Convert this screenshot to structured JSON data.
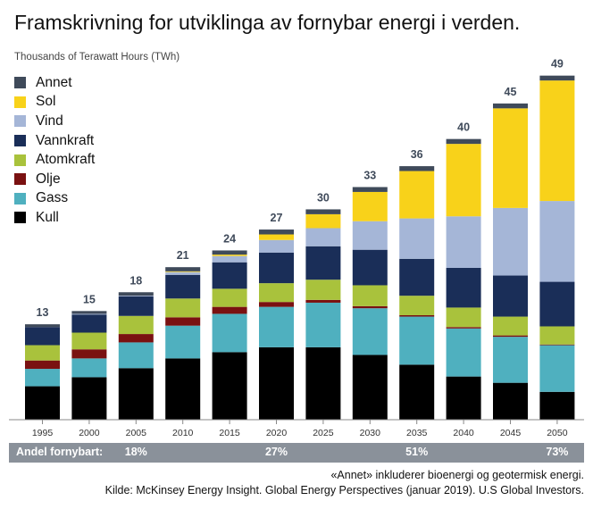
{
  "title": "Framskrivning for utviklinga av fornybar energi i verden.",
  "subtitle": "Thousands of Terawatt Hours (TWh)",
  "colors": {
    "Annet": "#3f4a5a",
    "Sol": "#f8d21a",
    "Vind": "#a5b6d7",
    "Vannkraft": "#1a2e58",
    "Atomkraft": "#a9c23c",
    "Olje": "#7a1111",
    "Gass": "#4fb0bf",
    "Kull": "#000000"
  },
  "legend": [
    "Annet",
    "Sol",
    "Vind",
    "Vannkraft",
    "Atomkraft",
    "Olje",
    "Gass",
    "Kull"
  ],
  "chart_data": {
    "type": "bar",
    "stacked": true,
    "categories": [
      "1995",
      "2000",
      "2005",
      "2010",
      "2015",
      "2020",
      "2025",
      "2030",
      "2035",
      "2040",
      "2045",
      "2050"
    ],
    "totals": [
      "13",
      "15",
      "18",
      "21",
      "24",
      "27",
      "30",
      "33",
      "36",
      "40",
      "45",
      "49"
    ],
    "series": [
      {
        "name": "Kull",
        "values": [
          4.8,
          6.1,
          7.4,
          8.8,
          9.7,
          10.4,
          10.4,
          9.3,
          7.9,
          6.2,
          5.3,
          4.0
        ]
      },
      {
        "name": "Gass",
        "values": [
          2.5,
          2.7,
          3.7,
          4.7,
          5.5,
          5.8,
          6.4,
          6.7,
          6.9,
          6.9,
          6.6,
          6.7
        ]
      },
      {
        "name": "Olje",
        "values": [
          1.2,
          1.3,
          1.2,
          1.2,
          1.0,
          0.7,
          0.4,
          0.3,
          0.2,
          0.2,
          0.2,
          0.1
        ]
      },
      {
        "name": "Atomkraft",
        "values": [
          2.2,
          2.4,
          2.6,
          2.7,
          2.6,
          2.7,
          2.9,
          3.0,
          2.8,
          2.8,
          2.7,
          2.6
        ]
      },
      {
        "name": "Vannkraft",
        "values": [
          2.6,
          2.6,
          2.8,
          3.4,
          3.8,
          4.4,
          4.8,
          5.1,
          5.3,
          5.7,
          5.9,
          6.4
        ]
      },
      {
        "name": "Vind",
        "values": [
          0.0,
          0.1,
          0.1,
          0.4,
          0.9,
          1.8,
          2.6,
          4.1,
          5.8,
          7.4,
          9.7,
          11.6
        ]
      },
      {
        "name": "Sol",
        "values": [
          0.0,
          0.0,
          0.0,
          0.1,
          0.2,
          0.8,
          2.0,
          4.2,
          6.8,
          10.4,
          14.3,
          17.3
        ]
      },
      {
        "name": "Annet",
        "values": [
          0.4,
          0.4,
          0.5,
          0.6,
          0.6,
          0.7,
          0.7,
          0.7,
          0.7,
          0.7,
          0.7,
          0.7
        ]
      }
    ],
    "ylim": [
      0,
      50
    ],
    "grid": false,
    "legend_position": "top-left"
  },
  "share": {
    "label": "Andel fornybart:",
    "values": [
      {
        "year": "2005",
        "value": "18%"
      },
      {
        "year": "2020",
        "value": "27%"
      },
      {
        "year": "2035",
        "value": "51%"
      },
      {
        "year": "2050",
        "value": "73%"
      }
    ]
  },
  "notes": {
    "note1": "«Annet» inkluderer bioenergi og geotermisk energi.",
    "note2": "Kilde: McKinsey Energy Insight. Global Energy Perspectives (januar 2019). U.S Global Investors."
  }
}
